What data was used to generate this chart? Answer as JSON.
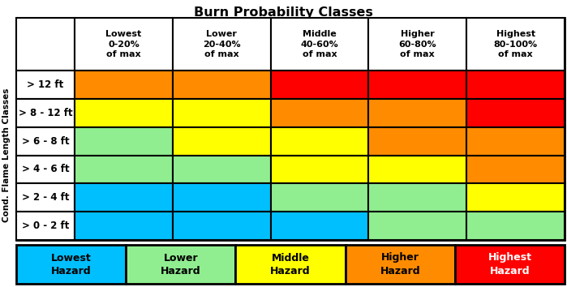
{
  "title": "Burn Probability Classes",
  "col_headers": [
    "Lowest\n0-20%\nof max",
    "Lower\n20-40%\nof max",
    "Middle\n40-60%\nof max",
    "Higher\n60-80%\nof max",
    "Highest\n80-100%\nof max"
  ],
  "row_headers": [
    "> 12 ft",
    "> 8 - 12 ft",
    "> 6 - 8 ft",
    "> 4 - 6 ft",
    "> 2 - 4 ft",
    "> 0 - 2 ft"
  ],
  "ylabel": "Cond. Flame Length Classes",
  "cell_colors": [
    [
      "#FF8C00",
      "#FF8C00",
      "#FF0000",
      "#FF0000",
      "#FF0000"
    ],
    [
      "#FFFF00",
      "#FFFF00",
      "#FF8C00",
      "#FF8C00",
      "#FF0000"
    ],
    [
      "#90EE90",
      "#FFFF00",
      "#FFFF00",
      "#FF8C00",
      "#FF8C00"
    ],
    [
      "#90EE90",
      "#90EE90",
      "#FFFF00",
      "#FFFF00",
      "#FF8C00"
    ],
    [
      "#00BFFF",
      "#00BFFF",
      "#90EE90",
      "#90EE90",
      "#FFFF00"
    ],
    [
      "#00BFFF",
      "#00BFFF",
      "#00BFFF",
      "#90EE90",
      "#90EE90"
    ]
  ],
  "legend_labels": [
    "Lowest\nHazard",
    "Lower\nHazard",
    "Middle\nHazard",
    "Higher\nHazard",
    "Highest\nHazard"
  ],
  "legend_colors": [
    "#00BFFF",
    "#90EE90",
    "#FFFF00",
    "#FF8C00",
    "#FF0000"
  ],
  "legend_text_colors": [
    "#000000",
    "#000000",
    "#000000",
    "#000000",
    "#FFFFFF"
  ],
  "n_rows": 6,
  "n_cols": 5
}
